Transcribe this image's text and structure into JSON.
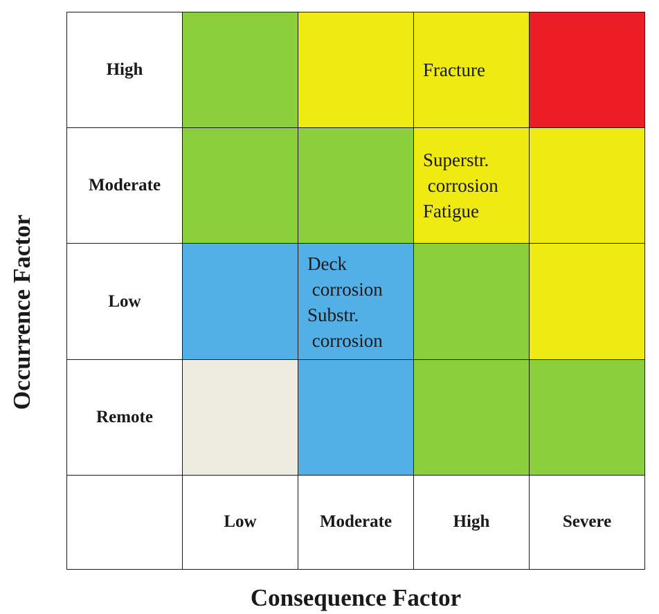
{
  "diagram": {
    "y_axis_title": "Occurrence Factor",
    "x_axis_title": "Consequence Factor",
    "colors": {
      "green": "#8bcf3c",
      "yellow": "#eeea12",
      "red": "#ec1d24",
      "blue": "#52b0e6",
      "beige": "#eeebe1"
    },
    "rows": [
      {
        "label": "High",
        "cells": [
          {
            "color": "#8bcf3c",
            "text": ""
          },
          {
            "color": "#eeea12",
            "text": ""
          },
          {
            "color": "#eeea12",
            "text": "Fracture"
          },
          {
            "color": "#ec1d24",
            "text": ""
          }
        ]
      },
      {
        "label": "Moderate",
        "cells": [
          {
            "color": "#8bcf3c",
            "text": ""
          },
          {
            "color": "#8bcf3c",
            "text": ""
          },
          {
            "color": "#eeea12",
            "text": "Superstr.\n corrosion\nFatigue"
          },
          {
            "color": "#eeea12",
            "text": ""
          }
        ]
      },
      {
        "label": "Low",
        "cells": [
          {
            "color": "#52b0e6",
            "text": ""
          },
          {
            "color": "#52b0e6",
            "text": "Deck\n corrosion\nSubstr.\n corrosion"
          },
          {
            "color": "#8bcf3c",
            "text": ""
          },
          {
            "color": "#eeea12",
            "text": ""
          }
        ]
      },
      {
        "label": "Remote",
        "cells": [
          {
            "color": "#eeebe1",
            "text": ""
          },
          {
            "color": "#52b0e6",
            "text": ""
          },
          {
            "color": "#8bcf3c",
            "text": ""
          },
          {
            "color": "#8bcf3c",
            "text": ""
          }
        ]
      }
    ],
    "columns": [
      "Low",
      "Moderate",
      "High",
      "Severe"
    ]
  }
}
